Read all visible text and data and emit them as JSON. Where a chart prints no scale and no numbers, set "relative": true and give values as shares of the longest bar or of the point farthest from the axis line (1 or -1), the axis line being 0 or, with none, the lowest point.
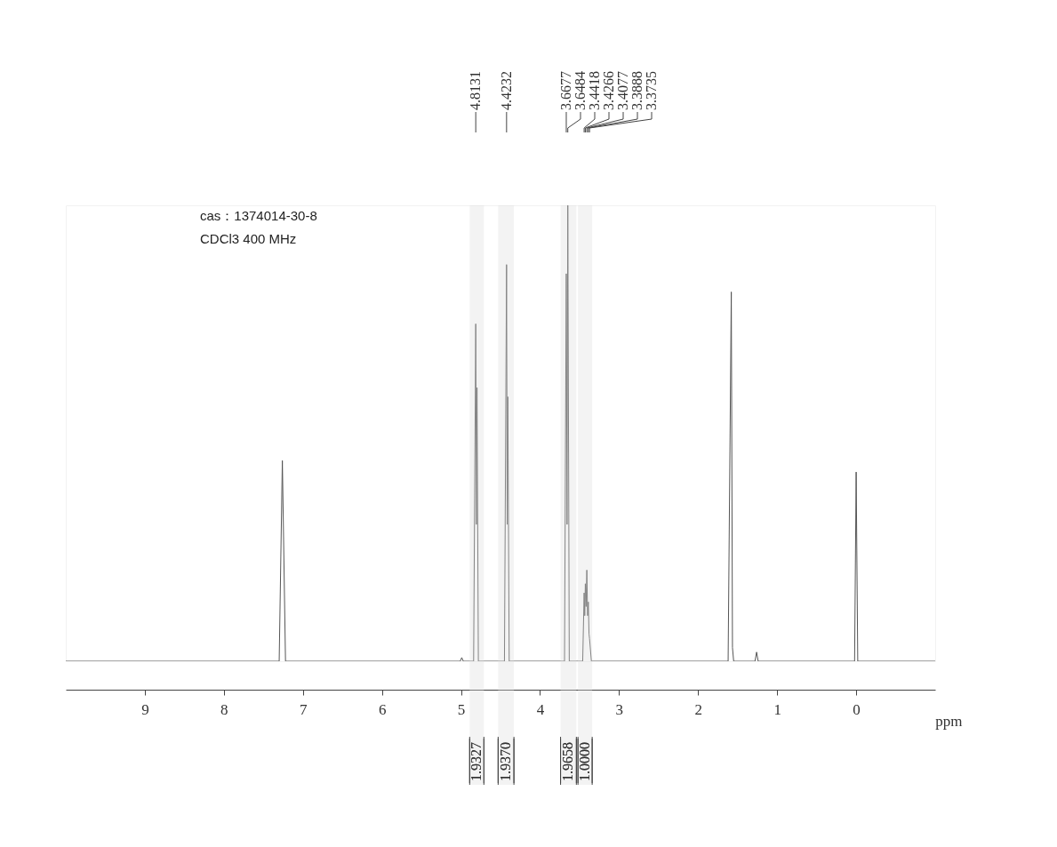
{
  "chart_data": {
    "type": "line",
    "relative": true,
    "xlabel": "ppm",
    "xlim": [
      10,
      -1
    ],
    "xticks": [
      9,
      8,
      7,
      6,
      5,
      4,
      3,
      2,
      1,
      0
    ],
    "color": "#555555",
    "x": [
      10,
      7.3,
      7.26,
      7.22,
      5.01,
      4.99,
      4.97,
      4.84,
      4.8131,
      4.805,
      4.797,
      4.78,
      4.45,
      4.4232,
      4.415,
      4.407,
      4.39,
      3.69,
      3.6677,
      3.658,
      3.6484,
      3.63,
      3.46,
      3.4418,
      3.434,
      3.4266,
      3.417,
      3.4077,
      3.398,
      3.3888,
      3.38,
      3.3735,
      3.35,
      1.62,
      1.58,
      1.565,
      1.55,
      1.28,
      1.26,
      1.24,
      0.02,
      0.0,
      -0.02,
      -1
    ],
    "values": [
      0,
      0,
      0.44,
      0,
      0,
      0.008,
      0,
      0,
      0.74,
      0.3,
      0.6,
      0,
      0,
      0.87,
      0.3,
      0.58,
      0,
      0,
      0.85,
      0.3,
      1.0,
      0,
      0,
      0.15,
      0.1,
      0.17,
      0.12,
      0.2,
      0.1,
      0.13,
      0.06,
      0.05,
      0,
      0,
      0.81,
      0.03,
      0,
      0,
      0.02,
      0,
      0,
      0.415,
      0,
      0
    ],
    "annotations": [
      "cas：1374014-30-8",
      "CDCl3  400  MHz",
      {
        "text": "4.8131",
        "x": 4.8131
      },
      {
        "text": "4.4232",
        "x": 4.4232
      },
      {
        "text": "3.6677",
        "x": 3.6677
      },
      {
        "text": "3.6484",
        "x": 3.6484
      },
      {
        "text": "3.4418",
        "x": 3.4418
      },
      {
        "text": "3.4266",
        "x": 3.4266
      },
      {
        "text": "3.4077",
        "x": 3.4077
      },
      {
        "text": "3.3888",
        "x": 3.3888
      },
      {
        "text": "3.3735",
        "x": 3.3735
      }
    ],
    "bands": [
      {
        "axis": "x",
        "from": 4.89,
        "to": 4.71,
        "label": "1.9327"
      },
      {
        "axis": "x",
        "from": 4.53,
        "to": 4.33,
        "label": "1.9370"
      },
      {
        "axis": "x",
        "from": 3.74,
        "to": 3.54,
        "label": "1.9658"
      },
      {
        "axis": "x",
        "from": 3.52,
        "to": 3.34,
        "label": "1.0000"
      }
    ]
  }
}
